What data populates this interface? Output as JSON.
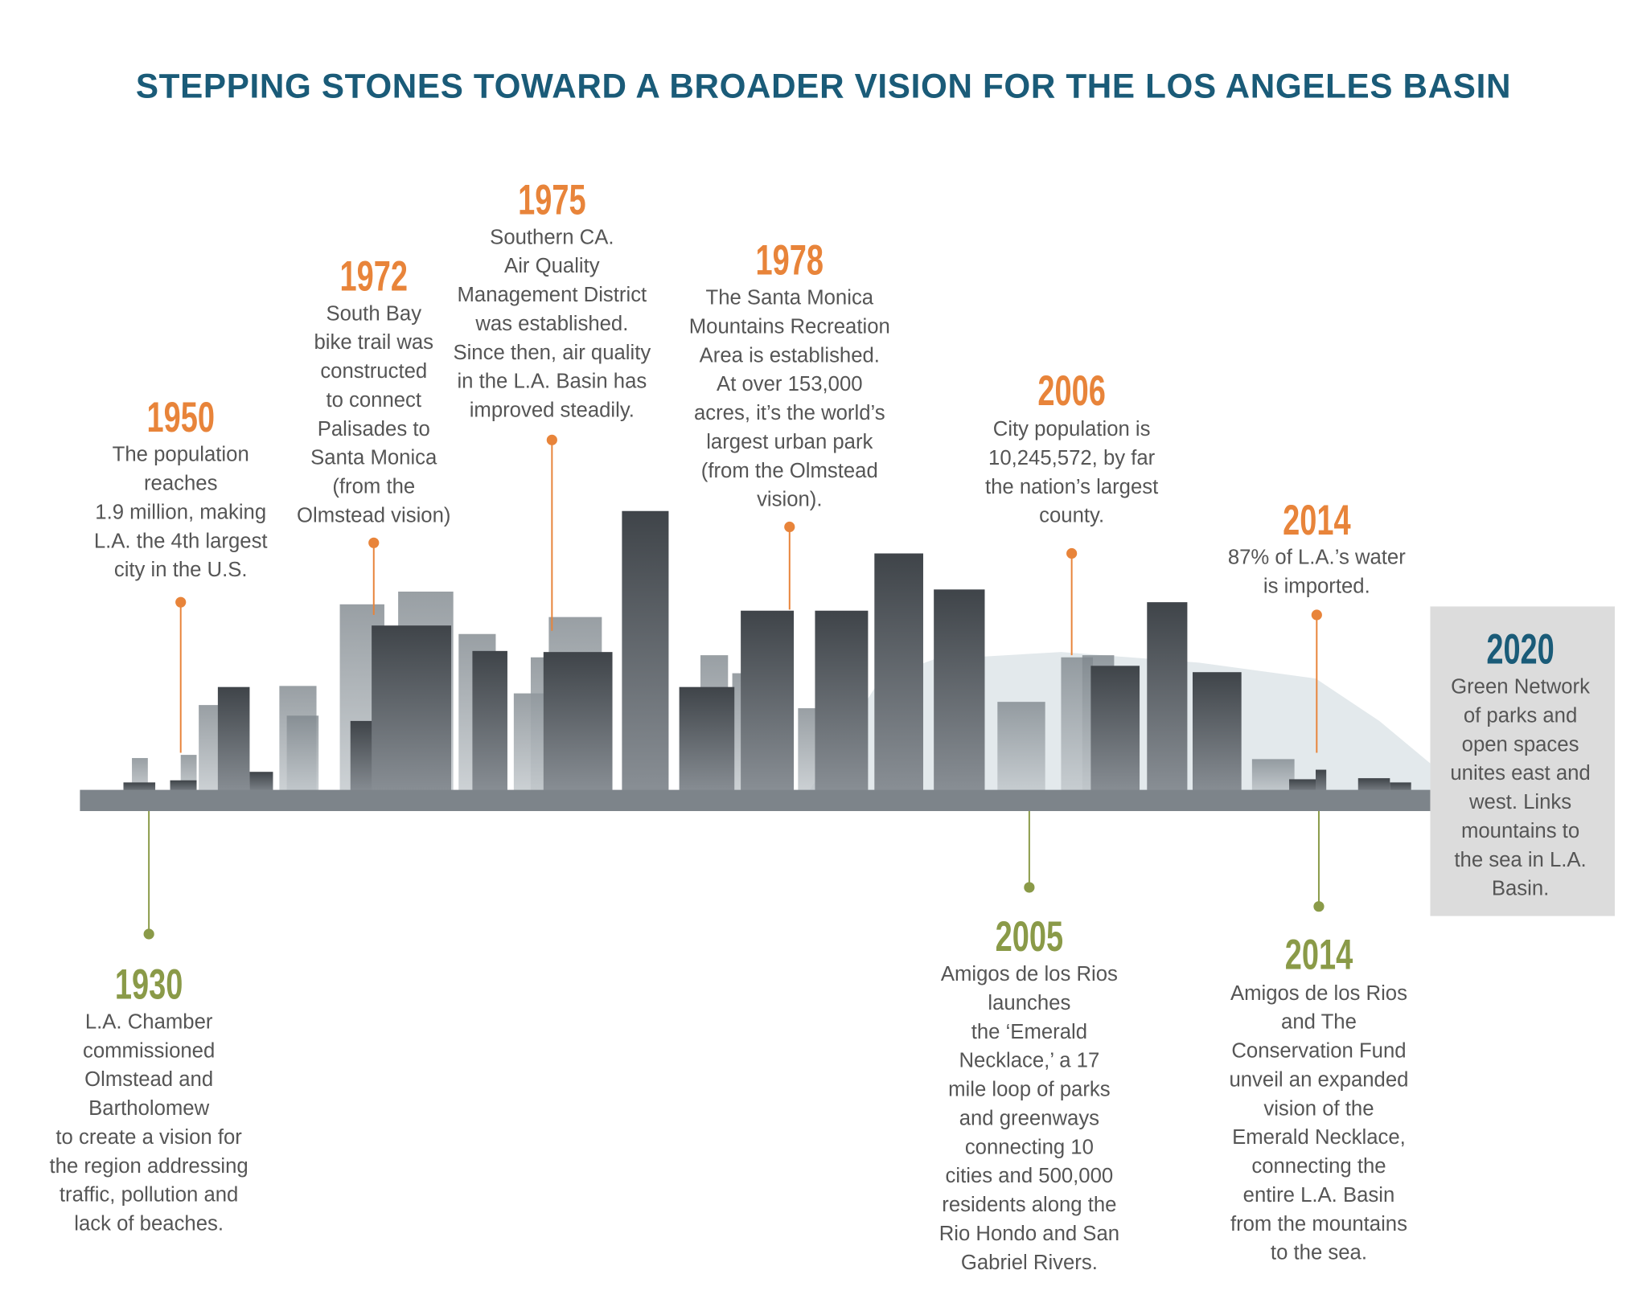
{
  "title": "STEPPING STONES TOWARD A BROADER VISION FOR THE LOS ANGELES BASIN",
  "events": [
    {
      "year": "1930",
      "color": "#8a9a48",
      "lines": [
        "L.A. Chamber",
        "commissioned",
        "Olmstead and",
        "Bartholomew",
        "to create a vision for",
        "the region addressing",
        "traffic, pollution and",
        "lack of beaches."
      ]
    },
    {
      "year": "1950",
      "color": "#e8843a",
      "lines": [
        "The population",
        "reaches",
        "1.9 million, making",
        "L.A. the 4th largest",
        "city in the U.S."
      ]
    },
    {
      "year": "1972",
      "color": "#e8843a",
      "lines": [
        "South Bay",
        "bike trail was",
        "constructed",
        "to connect",
        "Palisades to",
        "Santa Monica",
        "(from the",
        "Olmstead vision)"
      ]
    },
    {
      "year": "1975",
      "color": "#e8843a",
      "lines": [
        "Southern CA.",
        "Air Quality",
        "Management District",
        "was established.",
        "Since then, air quality",
        "in the L.A. Basin has",
        "improved steadily."
      ]
    },
    {
      "year": "1978",
      "color": "#e8843a",
      "lines": [
        "The Santa Monica",
        "Mountains Recreation",
        "Area is established.",
        "At over 153,000",
        "acres, it’s the world’s",
        "largest urban park",
        "(from the Olmstead",
        "vision)."
      ]
    },
    {
      "year": "2005",
      "color": "#8a9a48",
      "lines": [
        "Amigos de los Rios",
        "launches",
        "the ‘Emerald",
        "Necklace,’ a 17",
        "mile loop of parks",
        "and greenways",
        "connecting 10",
        "cities and 500,000",
        "residents along the",
        "Rio Hondo and San",
        "Gabriel Rivers."
      ]
    },
    {
      "year": "2006",
      "color": "#e8843a",
      "lines": [
        "City population is",
        "10,245,572, by far",
        "the nation’s largest",
        "county."
      ]
    },
    {
      "year": "2014",
      "color": "#e8843a",
      "lines": [
        "87% of L.A.’s water",
        "is imported."
      ]
    },
    {
      "year": "2014",
      "color": "#8a9a48",
      "lines": [
        "Amigos de los Rios",
        "and The",
        "Conservation Fund",
        "unveil an expanded",
        "vision of the",
        "Emerald Necklace,",
        "connecting the",
        "entire L.A. Basin",
        "from the mountains",
        "to the sea."
      ]
    },
    {
      "year": "2020",
      "color": "#1a5b78",
      "lines": [
        "Green Network",
        "of parks and",
        "open spaces",
        "unites east and",
        "west. Links",
        "mountains to",
        "the sea in L.A.",
        "Basin."
      ]
    }
  ]
}
